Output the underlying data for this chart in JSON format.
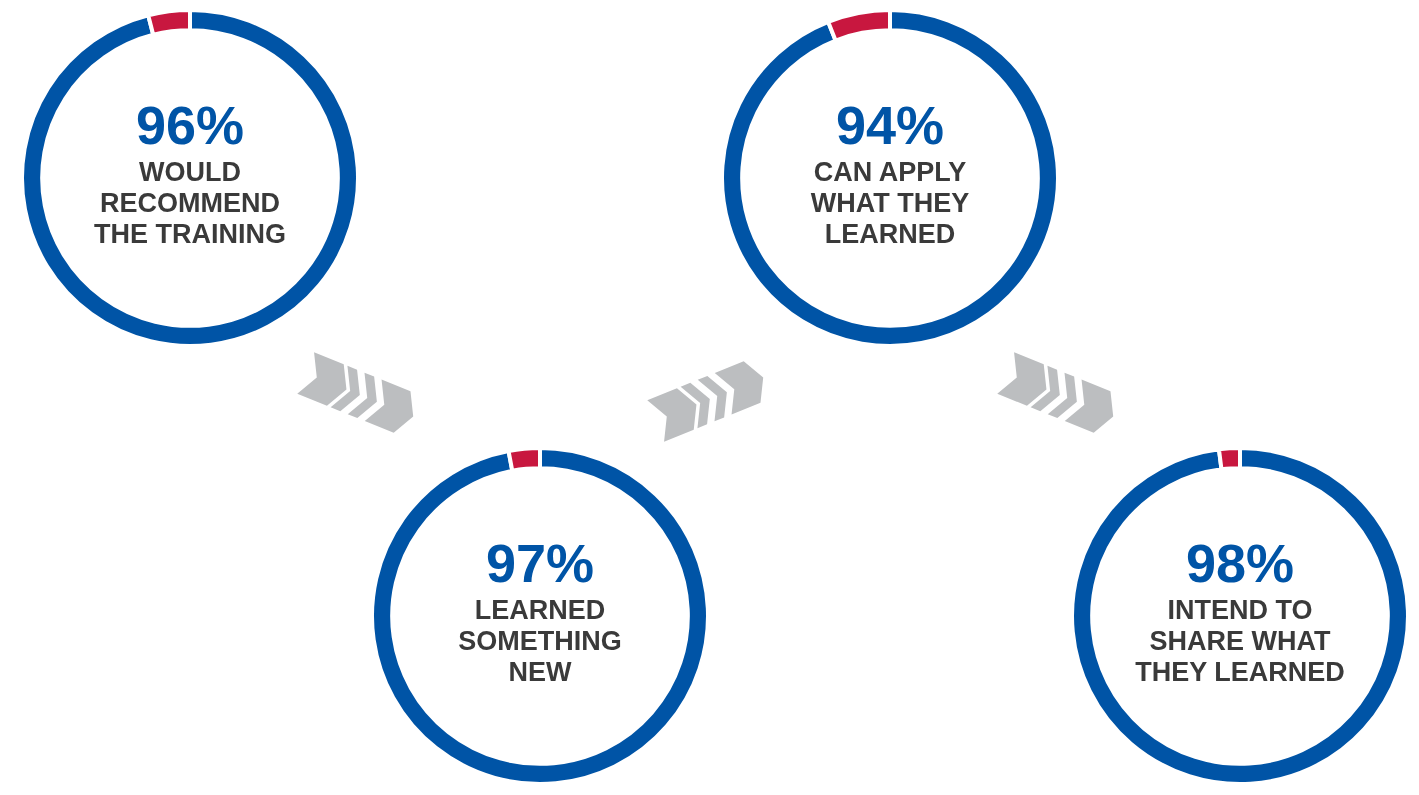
{
  "chart_data": [
    {
      "type": "donut",
      "title": "WOULD RECOMMEND THE TRAINING",
      "categories": [
        null,
        null
      ],
      "values": [
        96,
        4
      ],
      "colors": [
        "#0054a6",
        "#c8173f"
      ],
      "value_labels": [
        "96%",
        null
      ]
    },
    {
      "type": "donut",
      "title": "LEARNED SOMETHING NEW",
      "categories": [
        null,
        null
      ],
      "values": [
        97,
        3
      ],
      "colors": [
        "#0054a6",
        "#c8173f"
      ],
      "value_labels": [
        "97%",
        null
      ]
    },
    {
      "type": "donut",
      "title": "CAN APPLY WHAT THEY LEARNED",
      "categories": [
        null,
        null
      ],
      "values": [
        94,
        6
      ],
      "colors": [
        "#0054a6",
        "#c8173f"
      ],
      "value_labels": [
        "94%",
        null
      ]
    },
    {
      "type": "donut",
      "title": "INTEND TO SHARE WHAT THEY LEARNED",
      "categories": [
        null,
        null
      ],
      "values": [
        98,
        2
      ],
      "colors": [
        "#0054a6",
        "#c8173f"
      ],
      "value_labels": [
        "98%",
        null
      ]
    }
  ]
}
